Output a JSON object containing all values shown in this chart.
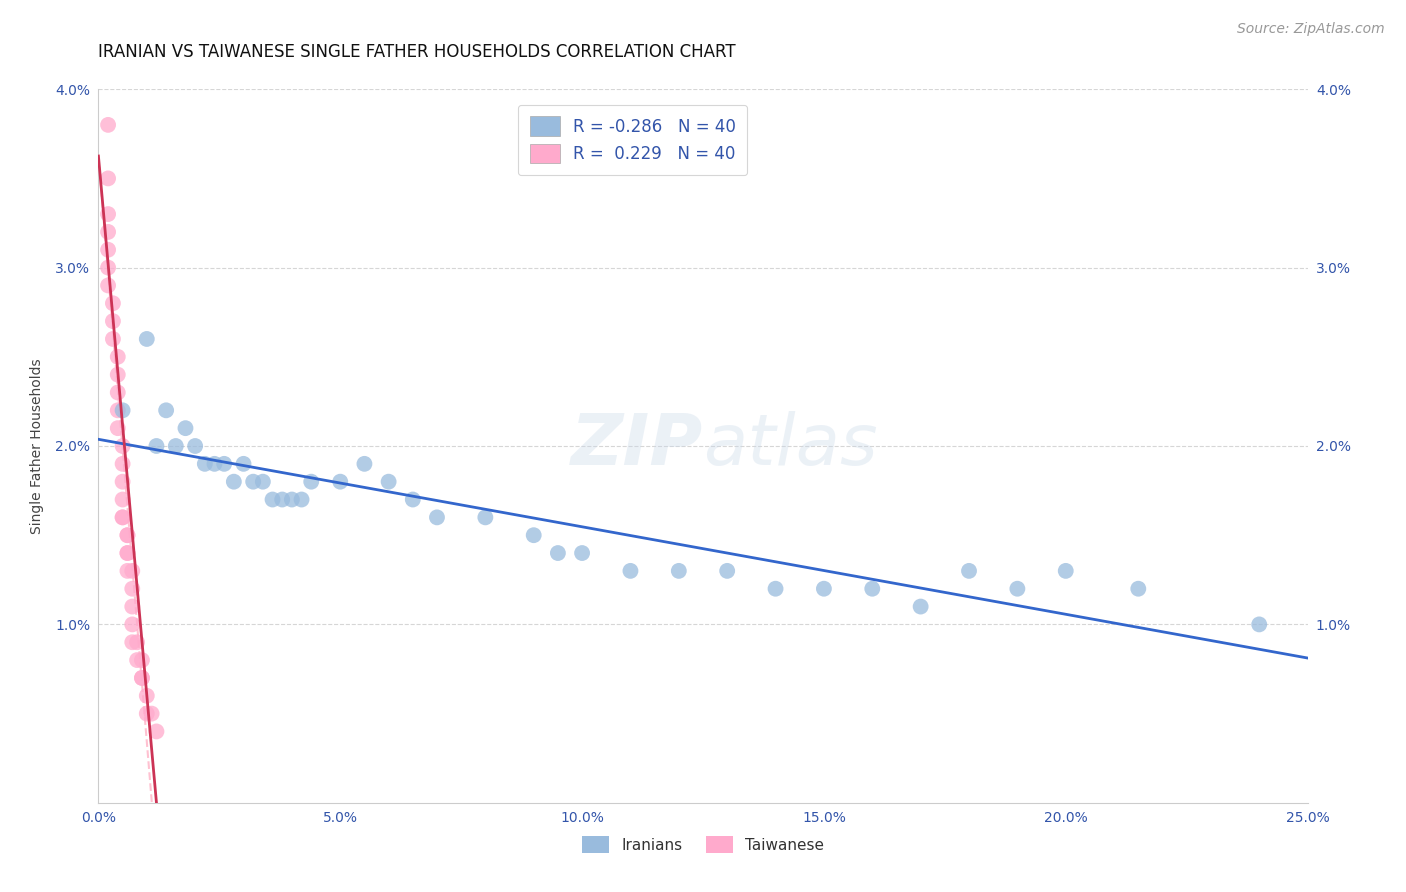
{
  "title": "IRANIAN VS TAIWANESE SINGLE FATHER HOUSEHOLDS CORRELATION CHART",
  "source": "Source: ZipAtlas.com",
  "ylabel": "Single Father Households",
  "watermark": "ZIPatlas",
  "xlim": [
    0.0,
    0.25
  ],
  "ylim": [
    0.0,
    0.04
  ],
  "xticks": [
    0.0,
    0.05,
    0.1,
    0.15,
    0.2,
    0.25
  ],
  "yticks": [
    0.01,
    0.02,
    0.03,
    0.04
  ],
  "ytick_labels": [
    "1.0%",
    "2.0%",
    "3.0%",
    "4.0%"
  ],
  "xtick_labels": [
    "0.0%",
    "5.0%",
    "10.0%",
    "15.0%",
    "20.0%",
    "25.0%"
  ],
  "iranians_x": [
    0.005,
    0.01,
    0.012,
    0.014,
    0.016,
    0.018,
    0.02,
    0.022,
    0.024,
    0.026,
    0.028,
    0.03,
    0.032,
    0.034,
    0.036,
    0.038,
    0.04,
    0.042,
    0.044,
    0.05,
    0.055,
    0.06,
    0.065,
    0.07,
    0.08,
    0.09,
    0.095,
    0.1,
    0.11,
    0.12,
    0.13,
    0.14,
    0.15,
    0.16,
    0.17,
    0.18,
    0.19,
    0.2,
    0.215,
    0.24
  ],
  "iranians_y": [
    0.022,
    0.026,
    0.02,
    0.022,
    0.02,
    0.021,
    0.02,
    0.019,
    0.019,
    0.019,
    0.018,
    0.019,
    0.018,
    0.018,
    0.017,
    0.017,
    0.017,
    0.017,
    0.018,
    0.018,
    0.019,
    0.018,
    0.017,
    0.016,
    0.016,
    0.015,
    0.014,
    0.014,
    0.013,
    0.013,
    0.013,
    0.012,
    0.012,
    0.012,
    0.011,
    0.013,
    0.012,
    0.013,
    0.012,
    0.01
  ],
  "taiwanese_x": [
    0.002,
    0.002,
    0.002,
    0.002,
    0.002,
    0.002,
    0.002,
    0.003,
    0.003,
    0.003,
    0.004,
    0.004,
    0.004,
    0.004,
    0.004,
    0.005,
    0.005,
    0.005,
    0.005,
    0.005,
    0.005,
    0.006,
    0.006,
    0.006,
    0.006,
    0.006,
    0.007,
    0.007,
    0.007,
    0.007,
    0.007,
    0.008,
    0.008,
    0.009,
    0.009,
    0.009,
    0.01,
    0.01,
    0.011,
    0.012
  ],
  "taiwanese_y": [
    0.038,
    0.035,
    0.033,
    0.032,
    0.031,
    0.03,
    0.029,
    0.028,
    0.027,
    0.026,
    0.025,
    0.024,
    0.023,
    0.022,
    0.021,
    0.02,
    0.019,
    0.018,
    0.017,
    0.016,
    0.016,
    0.015,
    0.015,
    0.014,
    0.014,
    0.013,
    0.013,
    0.012,
    0.011,
    0.01,
    0.009,
    0.009,
    0.008,
    0.008,
    0.007,
    0.007,
    0.006,
    0.005,
    0.005,
    0.004
  ],
  "blue_line_color": "#3366cc",
  "pink_line_color": "#cc3355",
  "pink_dash_color": "#ffbbcc",
  "scatter_blue_color": "#99bbdd",
  "scatter_pink_color": "#ffaacc",
  "background_color": "#ffffff",
  "grid_color": "#cccccc",
  "title_color": "#111111",
  "axis_label_color": "#444444",
  "tick_color": "#3355aa",
  "title_fontsize": 12,
  "source_fontsize": 10,
  "ylabel_fontsize": 10,
  "legend_text_color": "#3355aa",
  "legend_r_value_color": "#3355aa"
}
